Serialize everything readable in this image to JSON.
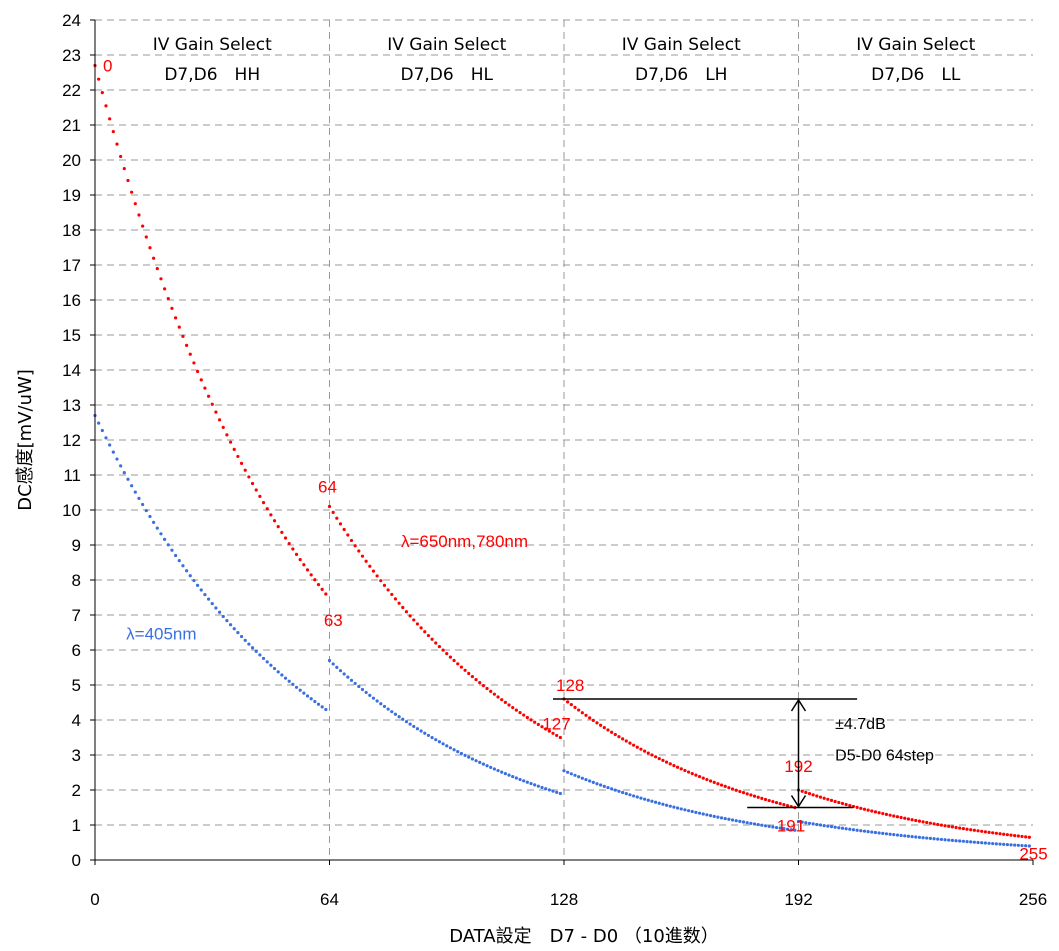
{
  "chart_data": {
    "type": "scatter",
    "xlabel": "DATA設定　D7 - D0 （10進数）",
    "ylabel": "DC感度[mV/uW]",
    "xlim": [
      0,
      256
    ],
    "ylim": [
      0,
      24
    ],
    "x_ticks": [
      0,
      64,
      128,
      192,
      256
    ],
    "y_ticks": [
      0,
      1,
      2,
      3,
      4,
      5,
      6,
      7,
      8,
      9,
      10,
      11,
      12,
      13,
      14,
      15,
      16,
      17,
      18,
      19,
      20,
      21,
      22,
      23,
      24
    ],
    "grid": "horizontal and vertical dashed",
    "region_dividers": [
      64,
      128,
      192
    ],
    "regions": [
      {
        "line1": "IV Gain Select",
        "line2": "D7,D6　HH"
      },
      {
        "line1": "IV Gain Select",
        "line2": "D7,D6　HL"
      },
      {
        "line1": "IV Gain Select",
        "line2": "D7,D6　LH"
      },
      {
        "line1": "IV Gain Select",
        "line2": "D7,D6　LL"
      }
    ],
    "series": [
      {
        "name": "λ=650nm,780nm",
        "color": "#ff0000",
        "segments": [
          {
            "x_start": 0,
            "x_end": 63,
            "y_start": 22.7,
            "y_end": 7.6
          },
          {
            "x_start": 64,
            "x_end": 127,
            "y_start": 10.1,
            "y_end": 3.5
          },
          {
            "x_start": 128,
            "x_end": 191,
            "y_start": 4.6,
            "y_end": 1.5
          },
          {
            "x_start": 192,
            "x_end": 255,
            "y_start": 2.0,
            "y_end": 0.65
          }
        ]
      },
      {
        "name": "λ=405nm",
        "color": "#3a6fe0",
        "segments": [
          {
            "x_start": 0,
            "x_end": 63,
            "y_start": 12.7,
            "y_end": 4.3
          },
          {
            "x_start": 64,
            "x_end": 127,
            "y_start": 5.7,
            "y_end": 1.9
          },
          {
            "x_start": 128,
            "x_end": 191,
            "y_start": 2.55,
            "y_end": 0.85
          },
          {
            "x_start": 192,
            "x_end": 255,
            "y_start": 1.1,
            "y_end": 0.4
          }
        ]
      }
    ],
    "series_labels": {
      "red": "λ=650nm,780nm",
      "blue": "λ=405nm"
    },
    "point_labels": [
      {
        "text": "0",
        "x": 0,
        "y": 22.7
      },
      {
        "text": "63",
        "x": 63,
        "y": 7.6
      },
      {
        "text": "64",
        "x": 64,
        "y": 10.1
      },
      {
        "text": "127",
        "x": 127,
        "y": 3.5
      },
      {
        "text": "128",
        "x": 128,
        "y": 4.6
      },
      {
        "text": "191",
        "x": 191,
        "y": 1.5
      },
      {
        "text": "192",
        "x": 192,
        "y": 2.0
      },
      {
        "text": "255",
        "x": 255,
        "y": 0.65
      }
    ],
    "range_annotation": {
      "x": 191,
      "y_top": 4.6,
      "y_bottom": 1.5,
      "line1": "±4.7dB",
      "line2": "D5-D0 64step"
    }
  }
}
